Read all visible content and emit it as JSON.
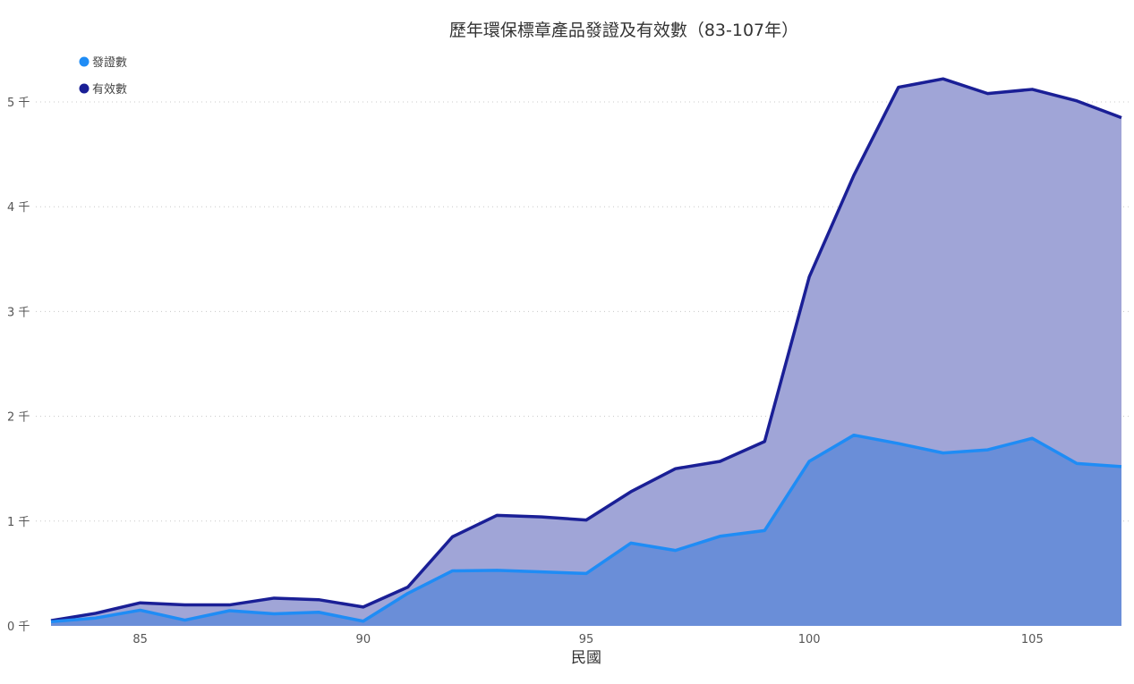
{
  "chart_data": {
    "type": "area",
    "title": "歷年環保標章產品發證及有效數（83-107年）",
    "xlabel": "民國",
    "ylabel": "",
    "x": [
      83,
      84,
      85,
      86,
      87,
      88,
      89,
      90,
      91,
      92,
      93,
      94,
      95,
      96,
      97,
      98,
      99,
      100,
      101,
      102,
      103,
      104,
      105,
      106,
      107
    ],
    "xticks": [
      85,
      90,
      95,
      100,
      105
    ],
    "xlim": [
      83,
      107
    ],
    "ylim": [
      0,
      5500
    ],
    "yticks": [
      0,
      1000,
      2000,
      3000,
      4000,
      5000
    ],
    "ytick_labels": [
      "0 千",
      "1 千",
      "2 千",
      "3 千",
      "4 千",
      "5 千"
    ],
    "grid": true,
    "legend_position": "top-left",
    "series": [
      {
        "name": "有效數",
        "color": "#1a1f96",
        "fill": "#a0a5d7",
        "values": [
          50,
          120,
          220,
          200,
          200,
          265,
          250,
          180,
          370,
          850,
          1055,
          1040,
          1010,
          1280,
          1500,
          1570,
          1760,
          3330,
          4300,
          5140,
          5220,
          5080,
          5120,
          5010,
          4850
        ]
      },
      {
        "name": "發證數",
        "color": "#1f8cf5",
        "fill": "#6a8ed8",
        "values": [
          40,
          75,
          150,
          55,
          145,
          115,
          130,
          45,
          310,
          525,
          530,
          515,
          500,
          790,
          720,
          855,
          910,
          1570,
          1820,
          1740,
          1650,
          1680,
          1790,
          1550,
          1520
        ]
      }
    ]
  }
}
